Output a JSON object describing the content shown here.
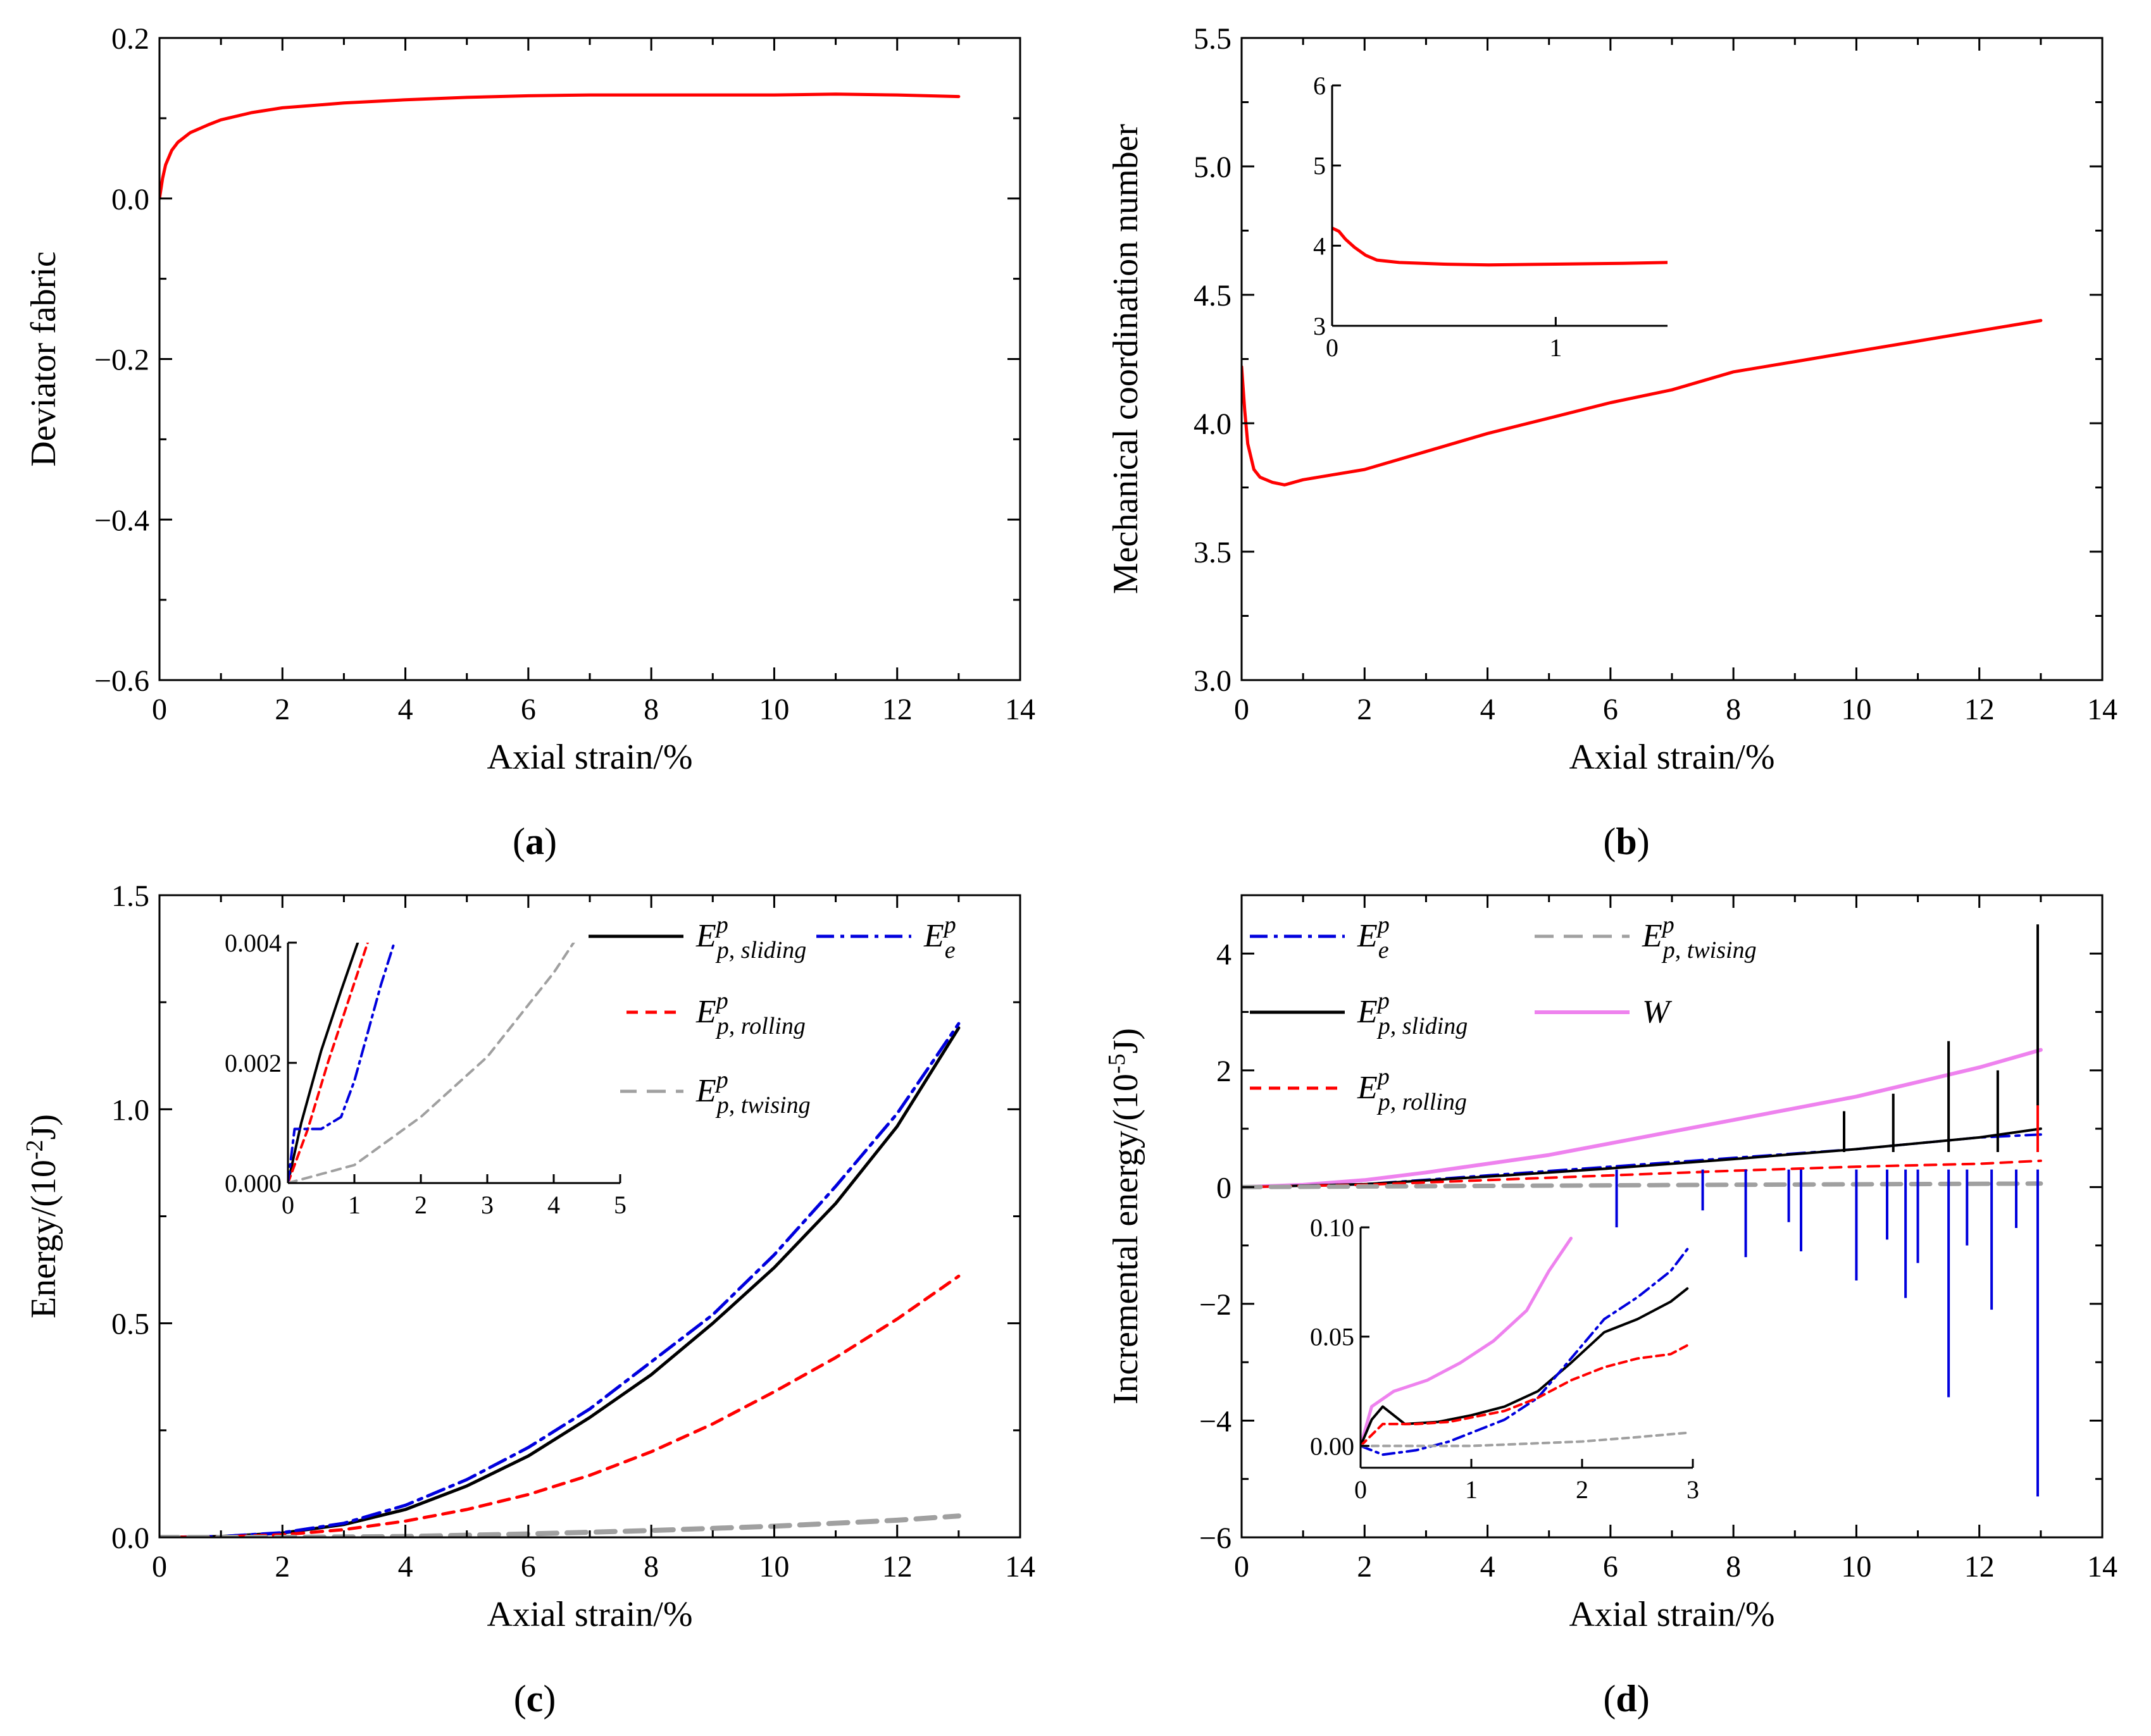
{
  "panels": [
    {
      "label": "a"
    },
    {
      "label": "b"
    },
    {
      "label": "c"
    },
    {
      "label": "d"
    }
  ],
  "chart_data": [
    {
      "id": "a",
      "type": "line",
      "title": "(a)",
      "xlabel": "Axial strain/%",
      "ylabel": "Deviator fabric",
      "xlim": [
        0,
        14
      ],
      "ylim": [
        -0.6,
        0.2
      ],
      "xticks": [
        0,
        2,
        4,
        6,
        8,
        10,
        12,
        14
      ],
      "yticks": [
        -0.6,
        -0.4,
        -0.2,
        0.0,
        0.2
      ],
      "ytick_labels": [
        "−0.6",
        "−0.4",
        "−0.2",
        "0.0",
        "0.2"
      ],
      "series": [
        {
          "name": "deviator fabric",
          "color": "#ff0000",
          "x": [
            0,
            0.05,
            0.1,
            0.2,
            0.3,
            0.5,
            0.8,
            1.0,
            1.5,
            2,
            3,
            4,
            5,
            6,
            7,
            8,
            9,
            10,
            11,
            12,
            13
          ],
          "y": [
            0.0,
            0.025,
            0.042,
            0.06,
            0.07,
            0.082,
            0.092,
            0.098,
            0.107,
            0.113,
            0.119,
            0.123,
            0.126,
            0.128,
            0.129,
            0.129,
            0.129,
            0.129,
            0.13,
            0.129,
            0.127
          ]
        }
      ]
    },
    {
      "id": "b",
      "type": "line",
      "title": "(b)",
      "xlabel": "Axial strain/%",
      "ylabel": "Mechanical coordination number",
      "xlim": [
        0,
        14
      ],
      "ylim": [
        3.0,
        5.5
      ],
      "xticks": [
        0,
        2,
        4,
        6,
        8,
        10,
        12,
        14
      ],
      "yticks": [
        3.0,
        3.5,
        4.0,
        4.5,
        5.0,
        5.5
      ],
      "ytick_labels": [
        "3.0",
        "3.5",
        "4.0",
        "4.5",
        "5.0",
        "5.5"
      ],
      "series": [
        {
          "name": "coordination number",
          "color": "#ff0000",
          "x": [
            0,
            0.05,
            0.1,
            0.2,
            0.3,
            0.5,
            0.7,
            1.0,
            1.5,
            2,
            3,
            4,
            5,
            6,
            7,
            8,
            9,
            10,
            11,
            12,
            13
          ],
          "y": [
            4.22,
            4.05,
            3.92,
            3.82,
            3.79,
            3.77,
            3.76,
            3.78,
            3.8,
            3.82,
            3.89,
            3.96,
            4.02,
            4.08,
            4.13,
            4.2,
            4.24,
            4.28,
            4.32,
            4.36,
            4.4
          ]
        }
      ],
      "inset": {
        "xlim": [
          0,
          1.5
        ],
        "ylim": [
          3,
          6
        ],
        "xticks": [
          0,
          1
        ],
        "yticks": [
          3,
          4,
          5,
          6
        ],
        "xtick_labels": [
          "0",
          "1"
        ],
        "ytick_labels": [
          "3",
          "4",
          "5",
          "6"
        ],
        "series": [
          {
            "name": "coordination number (inset)",
            "color": "#ff0000",
            "x": [
              0,
              0.03,
              0.06,
              0.1,
              0.15,
              0.2,
              0.3,
              0.5,
              0.7,
              1.0,
              1.3,
              1.5
            ],
            "y": [
              4.22,
              4.18,
              4.08,
              3.98,
              3.88,
              3.82,
              3.79,
              3.77,
              3.76,
              3.77,
              3.78,
              3.79
            ]
          }
        ]
      }
    },
    {
      "id": "c",
      "type": "line",
      "title": "(c)",
      "xlabel": "Axial strain/%",
      "ylabel": "Energy/(10",
      "ylabel_sup": "-2",
      "ylabel_end": "J)",
      "xlim": [
        0,
        14
      ],
      "ylim": [
        0,
        1.5
      ],
      "xticks": [
        0,
        2,
        4,
        6,
        8,
        10,
        12,
        14
      ],
      "yticks": [
        0.0,
        0.5,
        1.0,
        1.5
      ],
      "ytick_labels": [
        "0.0",
        "0.5",
        "1.0",
        "1.5"
      ],
      "legend": [
        {
          "base": "E",
          "sup": "p",
          "sub": "p, sliding",
          "color": "#000000",
          "dash": ""
        },
        {
          "base": "E",
          "sup": "p",
          "sub": "e",
          "color": "#0000dd",
          "dash": "28 10 6 10"
        },
        {
          "base": "E",
          "sup": "p",
          "sub": "p, rolling",
          "color": "#ff0000",
          "dash": "18 12"
        },
        {
          "base": "E",
          "sup": "p",
          "sub": "p, twising",
          "color": "#a0a0a0",
          "dash": "30 16"
        }
      ],
      "series": [
        {
          "name": "E p sliding",
          "color": "#000000",
          "dash": "",
          "width": 5,
          "x": [
            0,
            1,
            2,
            3,
            4,
            5,
            6,
            7,
            8,
            9,
            10,
            11,
            12,
            13
          ],
          "y": [
            0,
            0.002,
            0.01,
            0.03,
            0.065,
            0.12,
            0.19,
            0.28,
            0.38,
            0.5,
            0.63,
            0.78,
            0.96,
            1.19
          ]
        },
        {
          "name": "E p e",
          "color": "#0000dd",
          "dash": "28 10 6 10",
          "width": 5,
          "x": [
            0,
            1,
            2,
            3,
            4,
            5,
            6,
            7,
            8,
            9,
            10,
            11,
            12,
            13
          ],
          "y": [
            0,
            0.002,
            0.011,
            0.033,
            0.075,
            0.135,
            0.21,
            0.3,
            0.41,
            0.52,
            0.66,
            0.82,
            0.99,
            1.2
          ]
        },
        {
          "name": "E p rolling",
          "color": "#ff0000",
          "dash": "18 12",
          "width": 5,
          "x": [
            0,
            1,
            2,
            3,
            4,
            5,
            6,
            7,
            8,
            9,
            10,
            11,
            12,
            13
          ],
          "y": [
            0,
            0.001,
            0.006,
            0.018,
            0.038,
            0.065,
            0.1,
            0.145,
            0.2,
            0.265,
            0.34,
            0.42,
            0.51,
            0.61
          ]
        },
        {
          "name": "E p twising",
          "color": "#a0a0a0",
          "dash": "30 16",
          "width": 8,
          "x": [
            0,
            2,
            4,
            6,
            8,
            10,
            12,
            13
          ],
          "y": [
            0,
            0.0,
            0.002,
            0.008,
            0.016,
            0.026,
            0.04,
            0.05
          ]
        }
      ],
      "inset": {
        "xlim": [
          0,
          5
        ],
        "ylim": [
          0,
          0.004
        ],
        "xticks": [
          0,
          1,
          2,
          3,
          4,
          5
        ],
        "yticks": [
          0,
          0.002,
          0.004
        ],
        "xtick_labels": [
          "0",
          "1",
          "2",
          "3",
          "4",
          "5"
        ],
        "ytick_labels": [
          "0.000",
          "0.002",
          "0.004"
        ],
        "series": [
          {
            "name": "E p sliding (inset)",
            "color": "#000000",
            "dash": "",
            "width": 4,
            "x": [
              0,
              0.2,
              0.5,
              0.8,
              1.05
            ],
            "y": [
              0,
              0.001,
              0.0022,
              0.0032,
              0.004
            ]
          },
          {
            "name": "E p rolling (inset)",
            "color": "#ff0000",
            "dash": "12 8",
            "width": 4,
            "x": [
              0,
              0.3,
              0.6,
              0.9,
              1.2
            ],
            "y": [
              0,
              0.0009,
              0.002,
              0.003,
              0.004
            ]
          },
          {
            "name": "E p e (inset)",
            "color": "#0000dd",
            "dash": "18 8 4 8",
            "width": 4,
            "x": [
              0,
              0.1,
              0.5,
              0.8,
              1.0,
              1.2,
              1.4,
              1.6
            ],
            "y": [
              0,
              0.0009,
              0.0009,
              0.0011,
              0.0017,
              0.0025,
              0.0033,
              0.004
            ]
          },
          {
            "name": "E p twising (inset)",
            "color": "#a0a0a0",
            "dash": "14 10",
            "width": 4,
            "x": [
              0,
              1,
              2,
              3,
              3.5,
              4.0,
              4.3
            ],
            "y": [
              0,
              0.0003,
              0.0011,
              0.0021,
              0.0028,
              0.0035,
              0.004
            ]
          }
        ]
      }
    },
    {
      "id": "d",
      "type": "line",
      "title": "(d)",
      "xlabel": "Axial strain/%",
      "ylabel": "Incremental energy/(10",
      "ylabel_sup": "-5",
      "ylabel_end": "J)",
      "xlim": [
        0,
        14
      ],
      "ylim": [
        -6,
        5
      ],
      "xticks": [
        0,
        2,
        4,
        6,
        8,
        10,
        12,
        14
      ],
      "yticks": [
        -6,
        -4,
        -2,
        0,
        2,
        4
      ],
      "ytick_labels": [
        "−6",
        "−4",
        "−2",
        "0",
        "2",
        "4"
      ],
      "legend": [
        {
          "base": "E",
          "sup": "p",
          "sub": "e",
          "color": "#0000dd",
          "dash": "28 10 6 10"
        },
        {
          "base": "E",
          "sup": "p",
          "sub": "p, twising",
          "color": "#a0a0a0",
          "dash": "30 16"
        },
        {
          "base": "E",
          "sup": "p",
          "sub": "p, sliding",
          "color": "#000000",
          "dash": ""
        },
        {
          "base": "W",
          "sup": "",
          "sub": "",
          "color": "#ee82ee",
          "dash": ""
        },
        {
          "base": "E",
          "sup": "p",
          "sub": "p, rolling",
          "color": "#ff0000",
          "dash": "18 12"
        }
      ],
      "series": [
        {
          "name": "W",
          "color": "#ee82ee",
          "dash": "",
          "width": 6,
          "x": [
            0,
            1,
            2,
            3,
            4,
            5,
            6,
            7,
            8,
            9,
            10,
            11,
            12,
            13
          ],
          "y": [
            0,
            0.04,
            0.12,
            0.25,
            0.4,
            0.55,
            0.75,
            0.95,
            1.15,
            1.35,
            1.55,
            1.8,
            2.05,
            2.35
          ]
        },
        {
          "name": "E p e",
          "color": "#0000dd",
          "dash": "28 10 6 10",
          "width": 4,
          "x": [
            0,
            2,
            4,
            6,
            8,
            10,
            12,
            13
          ],
          "y": [
            0,
            0.05,
            0.2,
            0.35,
            0.5,
            0.65,
            0.85,
            0.9
          ]
        },
        {
          "name": "E p sliding",
          "color": "#000000",
          "dash": "",
          "width": 4,
          "x": [
            0,
            2,
            4,
            6,
            8,
            10,
            12,
            13
          ],
          "y": [
            0,
            0.05,
            0.18,
            0.32,
            0.48,
            0.65,
            0.85,
            1.0
          ]
        },
        {
          "name": "E p rolling",
          "color": "#ff0000",
          "dash": "18 12",
          "width": 4,
          "x": [
            0,
            2,
            4,
            6,
            8,
            10,
            12,
            13
          ],
          "y": [
            0,
            0.04,
            0.12,
            0.2,
            0.28,
            0.35,
            0.4,
            0.45
          ]
        },
        {
          "name": "E p twising",
          "color": "#a0a0a0",
          "dash": "30 16",
          "width": 7,
          "x": [
            0,
            4,
            8,
            13
          ],
          "y": [
            0,
            0.02,
            0.04,
            0.06
          ]
        }
      ],
      "spikes": [
        {
          "x": 6.1,
          "y": -0.8,
          "color": "#0000dd"
        },
        {
          "x": 7.5,
          "y": -0.4,
          "color": "#0000dd"
        },
        {
          "x": 8.2,
          "y": -1.2,
          "color": "#0000dd"
        },
        {
          "x": 8.9,
          "y": -0.6,
          "color": "#0000dd"
        },
        {
          "x": 9.1,
          "y": -1.1,
          "color": "#0000dd"
        },
        {
          "x": 10.0,
          "y": -1.6,
          "color": "#0000dd"
        },
        {
          "x": 10.5,
          "y": -0.9,
          "color": "#0000dd"
        },
        {
          "x": 10.8,
          "y": -1.9,
          "color": "#0000dd"
        },
        {
          "x": 11.0,
          "y": -1.3,
          "color": "#0000dd"
        },
        {
          "x": 11.5,
          "y": -3.6,
          "color": "#0000dd"
        },
        {
          "x": 11.8,
          "y": -1.0,
          "color": "#0000dd"
        },
        {
          "x": 12.2,
          "y": -2.1,
          "color": "#0000dd"
        },
        {
          "x": 12.6,
          "y": -0.7,
          "color": "#0000dd"
        },
        {
          "x": 12.95,
          "y": -5.3,
          "color": "#0000dd"
        },
        {
          "x": 12.95,
          "y": 4.5,
          "color": "#000000"
        },
        {
          "x": 11.5,
          "y": 2.5,
          "color": "#000000"
        },
        {
          "x": 12.3,
          "y": 2.0,
          "color": "#000000"
        },
        {
          "x": 10.6,
          "y": 1.6,
          "color": "#000000"
        },
        {
          "x": 9.8,
          "y": 1.3,
          "color": "#000000"
        },
        {
          "x": 12.95,
          "y": 1.4,
          "color": "#ff0000"
        }
      ],
      "inset": {
        "xlim": [
          0,
          3
        ],
        "ylim": [
          -0.01,
          0.1
        ],
        "xticks": [
          0,
          1,
          2,
          3
        ],
        "yticks": [
          0,
          0.05,
          0.1
        ],
        "xtick_labels": [
          "0",
          "1",
          "2",
          "3"
        ],
        "ytick_labels": [
          "0.00",
          "0.05",
          "0.10"
        ],
        "series": [
          {
            "name": "W (inset)",
            "color": "#ee82ee",
            "dash": "",
            "width": 5,
            "x": [
              0,
              0.1,
              0.3,
              0.6,
              0.9,
              1.2,
              1.5,
              1.7,
              1.9
            ],
            "y": [
              0,
              0.018,
              0.025,
              0.03,
              0.038,
              0.048,
              0.062,
              0.08,
              0.095
            ]
          },
          {
            "name": "E p sliding (inset)",
            "color": "#000000",
            "dash": "",
            "width": 4,
            "x": [
              0,
              0.1,
              0.2,
              0.4,
              0.7,
              1.0,
              1.3,
              1.6,
              1.9,
              2.2,
              2.5,
              2.8,
              2.95
            ],
            "y": [
              0,
              0.012,
              0.018,
              0.01,
              0.011,
              0.014,
              0.018,
              0.025,
              0.038,
              0.052,
              0.058,
              0.066,
              0.072
            ]
          },
          {
            "name": "E p e (inset)",
            "color": "#0000dd",
            "dash": "18 8 4 8",
            "width": 4,
            "x": [
              0,
              0.2,
              0.5,
              0.8,
              1.0,
              1.3,
              1.6,
              1.9,
              2.2,
              2.5,
              2.8,
              2.95
            ],
            "y": [
              0,
              -0.004,
              -0.002,
              0.002,
              0.006,
              0.012,
              0.022,
              0.04,
              0.058,
              0.068,
              0.08,
              0.09
            ]
          },
          {
            "name": "E p rolling (inset)",
            "color": "#ff0000",
            "dash": "12 8",
            "width": 4,
            "x": [
              0,
              0.2,
              0.5,
              0.8,
              1.0,
              1.3,
              1.6,
              1.9,
              2.2,
              2.5,
              2.8,
              2.95
            ],
            "y": [
              0,
              0.01,
              0.01,
              0.011,
              0.013,
              0.016,
              0.022,
              0.03,
              0.036,
              0.04,
              0.042,
              0.046
            ]
          },
          {
            "name": "E p twising (inset)",
            "color": "#a0a0a0",
            "dash": "10 8",
            "width": 4,
            "x": [
              0,
              0.5,
              1.0,
              1.5,
              2.0,
              2.5,
              2.95
            ],
            "y": [
              0,
              0,
              0.0,
              0.001,
              0.002,
              0.004,
              0.006
            ]
          }
        ]
      }
    }
  ]
}
